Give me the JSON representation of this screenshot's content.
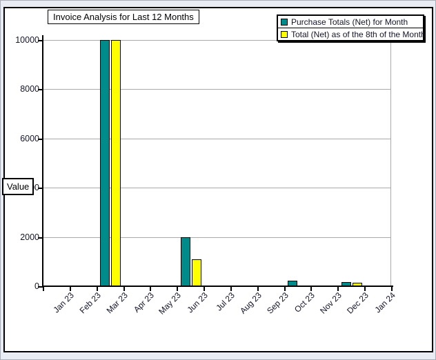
{
  "window": {
    "background": "#e9ecf3",
    "panel_background": "#ffffff"
  },
  "chart_data": {
    "type": "bar",
    "title": "Invoice Analysis for Last 12 Months",
    "categories": [
      "Jan 23",
      "Feb 23",
      "Mar 23",
      "Apr 23",
      "May 23",
      "Jun 23",
      "Jul 23",
      "Aug 23",
      "Sep 23",
      "Oct 23",
      "Nov 23",
      "Dec 23",
      "Jan 24"
    ],
    "series": [
      {
        "name": "Purchase Totals (Net) for Month",
        "color": "#008B8B",
        "values": [
          0,
          0,
          10000,
          0,
          0,
          2000,
          0,
          0,
          0,
          220,
          0,
          180,
          0
        ]
      },
      {
        "name": "Total (Net) as of the 8th of the Month",
        "color": "#FFFF00",
        "values": [
          0,
          0,
          10000,
          0,
          0,
          1100,
          0,
          0,
          0,
          0,
          0,
          150,
          0
        ]
      }
    ],
    "xlabel": "",
    "ylabel": "Value",
    "ylim": [
      0,
      10000
    ],
    "y_ticks": [
      0,
      2000,
      4000,
      6000,
      8000,
      10000
    ],
    "grid": true,
    "gridline_color": "#a9a9a9",
    "legend_position": "top-right",
    "tick_label_rotation_deg": 45
  }
}
